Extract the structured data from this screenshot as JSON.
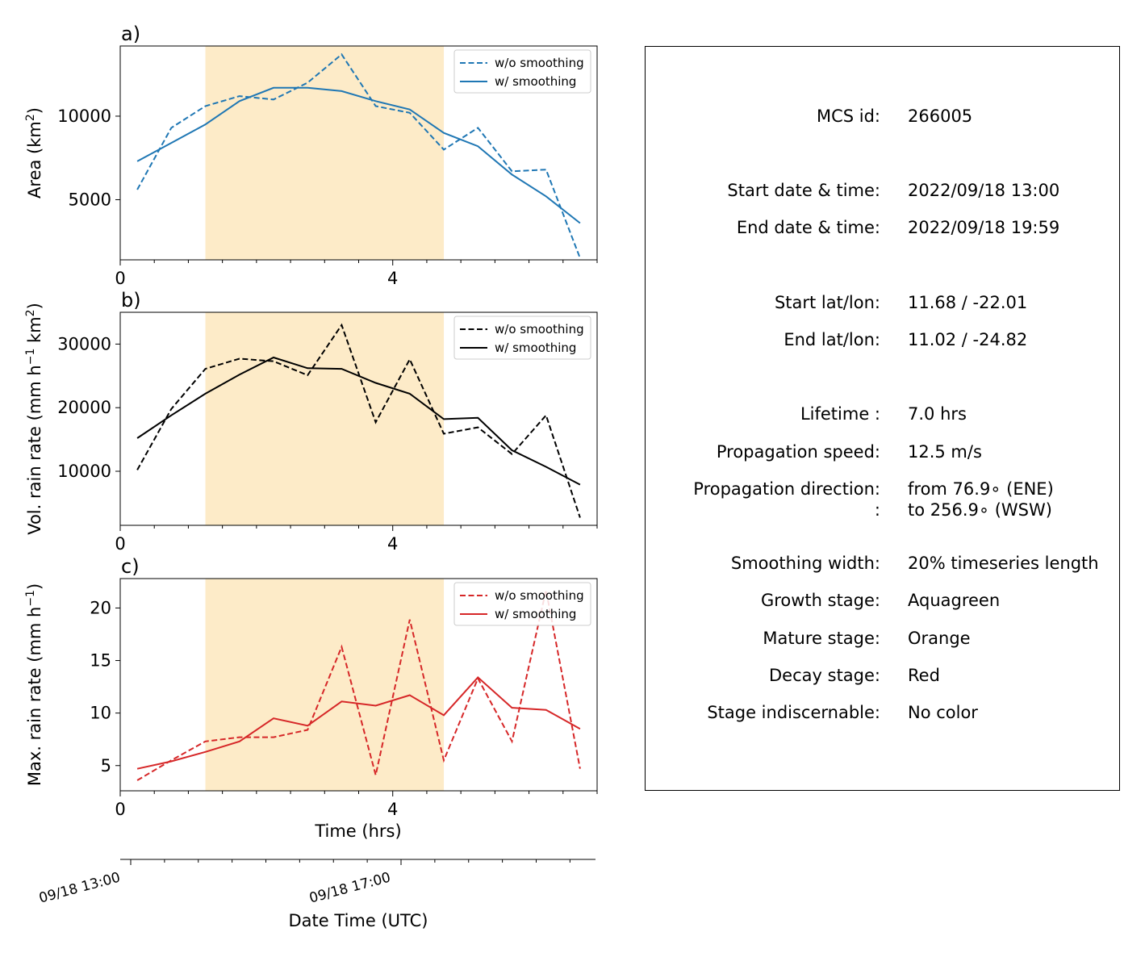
{
  "chart_data": [
    {
      "type": "line",
      "panel_label": "a)",
      "ylabel": "Area  (km$^2$)",
      "xlim": [
        0,
        7
      ],
      "ylim": [
        1400,
        14200
      ],
      "x_ticks": [
        "0",
        "4"
      ],
      "y_ticks": [
        5000,
        10000
      ],
      "highlight_span": [
        1.25,
        4.75
      ],
      "highlight_color": "#fdebc8",
      "color": "#1f77b4",
      "legend": {
        "placement": "top-right",
        "entries": [
          "w/o smoothing",
          "w/ smoothing"
        ]
      },
      "series": [
        {
          "name": "w/o smoothing",
          "style": "dashed",
          "x": [
            0.25,
            0.75,
            1.25,
            1.75,
            2.25,
            2.75,
            3.25,
            3.75,
            4.25,
            4.75,
            5.25,
            5.75,
            6.25,
            6.75
          ],
          "y": [
            5600,
            9300,
            10600,
            11200,
            11000,
            12000,
            13700,
            10600,
            10200,
            8000,
            9300,
            6700,
            6800,
            1500
          ]
        },
        {
          "name": "w/ smoothing",
          "style": "solid",
          "x": [
            0.25,
            0.75,
            1.25,
            1.75,
            2.25,
            2.75,
            3.25,
            3.75,
            4.25,
            4.75,
            5.25,
            5.75,
            6.25,
            6.75
          ],
          "y": [
            7300,
            8400,
            9500,
            10900,
            11700,
            11700,
            11500,
            10900,
            10400,
            9000,
            8200,
            6500,
            5200,
            3600
          ]
        }
      ]
    },
    {
      "type": "line",
      "panel_label": "b)",
      "ylabel": "Vol. rain rate (mm h$^{-1}$ km$^2$)",
      "xlim": [
        0,
        7
      ],
      "ylim": [
        1500,
        35000
      ],
      "x_ticks": [
        "0",
        "4"
      ],
      "y_ticks": [
        10000,
        20000,
        30000
      ],
      "highlight_span": [
        1.25,
        4.75
      ],
      "highlight_color": "#fdebc8",
      "color": "#000000",
      "legend": {
        "placement": "top-right",
        "entries": [
          "w/o smoothing",
          "w/ smoothing"
        ]
      },
      "series": [
        {
          "name": "w/o smoothing",
          "style": "dashed",
          "x": [
            0.25,
            0.75,
            1.25,
            1.75,
            2.25,
            2.75,
            3.25,
            3.75,
            4.25,
            4.75,
            5.25,
            5.75,
            6.25,
            6.75
          ],
          "y": [
            10200,
            19800,
            26100,
            27700,
            27300,
            25100,
            33000,
            17700,
            27600,
            15900,
            16900,
            12700,
            18800,
            2700
          ]
        },
        {
          "name": "w/ smoothing",
          "style": "solid",
          "x": [
            0.25,
            0.75,
            1.25,
            1.75,
            2.25,
            2.75,
            3.25,
            3.75,
            4.25,
            4.75,
            5.25,
            5.75,
            6.25,
            6.75
          ],
          "y": [
            15200,
            18800,
            22200,
            25200,
            27900,
            26200,
            26100,
            23900,
            22200,
            18200,
            18400,
            13300,
            10700,
            7900
          ]
        }
      ]
    },
    {
      "type": "line",
      "panel_label": "c)",
      "ylabel": "Max. rain rate  (mm h$^{-1}$)",
      "xlabel": "Time (hrs)",
      "xlim": [
        0,
        7
      ],
      "ylim": [
        2.6,
        22.8
      ],
      "x_ticks": [
        "0",
        "4"
      ],
      "y_ticks": [
        5,
        10,
        15,
        20
      ],
      "highlight_span": [
        1.25,
        4.75
      ],
      "highlight_color": "#fdebc8",
      "color": "#d62728",
      "legend": {
        "placement": "top-right",
        "entries": [
          "w/o smoothing",
          "w/ smoothing"
        ]
      },
      "series": [
        {
          "name": "w/o smoothing",
          "style": "dashed",
          "x": [
            0.25,
            0.75,
            1.25,
            1.75,
            2.25,
            2.75,
            3.25,
            3.75,
            4.25,
            4.75,
            5.25,
            5.75,
            6.25,
            6.75
          ],
          "y": [
            3.6,
            5.5,
            7.3,
            7.7,
            7.7,
            8.4,
            16.3,
            4.1,
            18.9,
            5.5,
            13.3,
            7.3,
            21.7,
            4.7
          ]
        },
        {
          "name": "w/ smoothing",
          "style": "solid",
          "x": [
            0.25,
            0.75,
            1.25,
            1.75,
            2.25,
            2.75,
            3.25,
            3.75,
            4.25,
            4.75,
            5.25,
            5.75,
            6.25,
            6.75
          ],
          "y": [
            4.7,
            5.4,
            6.3,
            7.3,
            9.5,
            8.8,
            11.1,
            10.7,
            11.7,
            9.8,
            13.4,
            10.5,
            10.3,
            8.5
          ]
        }
      ]
    }
  ],
  "date_axis": {
    "label": "Date Time (UTC)",
    "ticks": [
      "09/18 13:00",
      "09/18 17:00"
    ]
  },
  "info": {
    "rows": [
      {
        "label": "MCS id:",
        "value": "266005"
      },
      {
        "label": "Start date & time:",
        "value": "2022/09/18 13:00"
      },
      {
        "label": "End date & time:",
        "value": "2022/09/18 19:59"
      },
      {
        "label": "Start lat/lon:",
        "value": "11.68 / -22.01"
      },
      {
        "label": "End lat/lon:",
        "value": "11.02 / -24.82"
      },
      {
        "label": "Lifetime :",
        "value": "7.0 hrs"
      },
      {
        "label": "Propagation speed:",
        "value": "12.5 m/s"
      },
      {
        "label": "Propagation direction:",
        "value": "from  76.9∘ (ENE)"
      },
      {
        "label": ":",
        "value": "to   256.9∘ (WSW)"
      },
      {
        "label": "Smoothing width:",
        "value": "20% timeseries length"
      },
      {
        "label": "Growth stage:",
        "value": "Aquagreen"
      },
      {
        "label": "Mature stage:",
        "value": "Orange"
      },
      {
        "label": "Decay stage:",
        "value": "Red"
      },
      {
        "label": "Stage indiscernable:",
        "value": "No color"
      }
    ]
  }
}
